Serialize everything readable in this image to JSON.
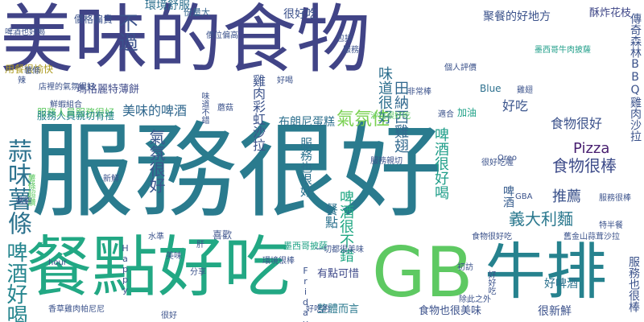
{
  "words": [
    {
      "text": "服務很好",
      "color": "#2a7b8e",
      "vertical": false
    },
    {
      "text": "美味的食物",
      "color": "#414487",
      "vertical": false
    },
    {
      "text": "餐點好吃",
      "color": "#22a884",
      "vertical": false
    },
    {
      "text": "GB",
      "color": "#5ec962",
      "vertical": false
    },
    {
      "text": "牛排",
      "color": "#26828e",
      "vertical": false
    },
    {
      "text": "蒜味薯條",
      "color": "#2c728e",
      "vertical": true
    },
    {
      "text": "啤酒好喝",
      "color": "#25858e",
      "vertical": true
    },
    {
      "text": "不過",
      "color": "#3b518b",
      "vertical": true
    },
    {
      "text": "氣氛佳",
      "color": "#7ad151",
      "vertical": false
    },
    {
      "text": "很好吃",
      "color": "#3b518b",
      "vertical": false
    },
    {
      "text": "聚餐的好地方",
      "color": "#3b528b",
      "vertical": false
    },
    {
      "text": "環境舒服",
      "color": "#2d708e",
      "vertical": false
    },
    {
      "text": "份量大",
      "color": "#33638d",
      "vertical": false
    },
    {
      "text": "酥炸花枝",
      "color": "#3f4788",
      "vertical": false
    },
    {
      "text": "墨西哥牛肉披薩",
      "color": "#1f9e89",
      "vertical": false
    },
    {
      "text": "瑪格麗特薄餅",
      "color": "#3e4a89",
      "vertical": false
    },
    {
      "text": "美味的啤酒",
      "color": "#31688e",
      "vertical": false
    },
    {
      "text": "好吃",
      "color": "#3a548c",
      "vertical": false
    },
    {
      "text": "味道很好",
      "color": "#2e6f8e",
      "vertical": true
    },
    {
      "text": "田納西雞翅",
      "color": "#31688e",
      "vertical": true
    },
    {
      "text": "雞肉彩虹沙拉",
      "color": "#3b528b",
      "vertical": true
    },
    {
      "text": "氣氛很好",
      "color": "#39568c",
      "vertical": true
    },
    {
      "text": "食物很好",
      "color": "#3b518b",
      "vertical": false
    },
    {
      "text": "食物很棒",
      "color": "#3e4c8a",
      "vertical": false
    },
    {
      "text": "Pizza",
      "color": "#481f70",
      "vertical": false
    },
    {
      "text": "推薦",
      "color": "#3b528b",
      "vertical": false
    },
    {
      "text": "義大利麵",
      "color": "#2a788e",
      "vertical": false
    },
    {
      "text": "布朗尼蛋糕",
      "color": "#2d708e",
      "vertical": false
    },
    {
      "text": "服務人員服務很好",
      "color": "#5ec962",
      "vertical": true
    },
    {
      "text": "服務人員親切有禮",
      "color": "#26828e",
      "vertical": false
    },
    {
      "text": "服務也很好",
      "color": "#2c728e",
      "vertical": true
    },
    {
      "text": "啤酒很好喝",
      "color": "#1f9e89",
      "vertical": true
    },
    {
      "text": "啤酒很不錯",
      "color": "#22a884",
      "vertical": true
    },
    {
      "text": "餐點",
      "color": "#2c728e",
      "vertical": true
    },
    {
      "text": "啤酒",
      "color": "#365c8d",
      "vertical": true
    },
    {
      "text": "好啤酒",
      "color": "#2c728e",
      "vertical": false
    },
    {
      "text": "很新鮮",
      "color": "#3b518b",
      "vertical": false
    },
    {
      "text": "食物也很美味",
      "color": "#3b518b",
      "vertical": false
    },
    {
      "text": "整體而言",
      "color": "#2a788e",
      "vertical": false
    },
    {
      "text": "服務也很棒",
      "color": "#3b528b",
      "vertical": true
    },
    {
      "text": "有點可惜",
      "color": "#3e4989",
      "vertical": false
    },
    {
      "text": "墨西哥披薩",
      "color": "#20a386",
      "vertical": false
    },
    {
      "text": "加油",
      "color": "#1fa187",
      "vertical": false
    },
    {
      "text": "喜歡",
      "color": "#3b528b",
      "vertical": false
    },
    {
      "text": "Blue",
      "color": "#2d708e",
      "vertical": false
    },
    {
      "text": "Friday",
      "color": "#3b528b",
      "vertical": true
    },
    {
      "text": "Happy",
      "color": "#3b528b",
      "vertical": true
    },
    {
      "text": "hour",
      "color": "#3b528b",
      "vertical": false
    },
    {
      "text": "Oreo",
      "color": "#3b528b",
      "vertical": false
    },
    {
      "text": "GBA",
      "color": "#3b528b",
      "vertical": false
    },
    {
      "text": "價格偏貴",
      "color": "#3b528b",
      "vertical": false
    },
    {
      "text": "啤酒也好喝",
      "color": "#3b528b",
      "vertical": false
    },
    {
      "text": "用餐很愉快",
      "color": "#ad9b20",
      "vertical": false
    },
    {
      "text": "價位偏高",
      "color": "#3b528b",
      "vertical": false
    },
    {
      "text": "店裡的氣氛很好",
      "color": "#3b528b",
      "vertical": false
    },
    {
      "text": "鮮蝦組合",
      "color": "#3b528b",
      "vertical": false
    },
    {
      "text": "美味",
      "color": "#3b528b",
      "vertical": false
    },
    {
      "text": "水準",
      "color": "#3b528b",
      "vertical": false
    },
    {
      "text": "分享",
      "color": "#3b528b",
      "vertical": false
    },
    {
      "text": "新鮮",
      "color": "#3b528b",
      "vertical": false
    },
    {
      "text": "很好",
      "color": "#3b528b",
      "vertical": false
    },
    {
      "text": "初訪",
      "color": "#3b528b",
      "vertical": false
    },
    {
      "text": "好好吃",
      "color": "#3b528b",
      "vertical": true
    },
    {
      "text": "沙拉很好吃",
      "color": "#5ec962",
      "vertical": false
    },
    {
      "text": "薯條",
      "color": "#3b528b",
      "vertical": false
    },
    {
      "text": "很好吃喔",
      "color": "#3b528b",
      "vertical": false
    },
    {
      "text": "個人評價",
      "color": "#3b528b",
      "vertical": false
    },
    {
      "text": "服務親切",
      "color": "#3b528b",
      "vertical": false
    },
    {
      "text": "服務很棒",
      "color": "#3b528b",
      "vertical": false
    },
    {
      "text": "傳奇森林BBQ雞肉沙拉",
      "color": "#3b528b",
      "vertical": true
    },
    {
      "text": "舊金山蒜茸沙拉",
      "color": "#3b528b",
      "vertical": false
    },
    {
      "text": "食物很好吃",
      "color": "#3b528b",
      "vertical": false
    },
    {
      "text": "一切都很美味",
      "color": "#3b528b",
      "vertical": false
    },
    {
      "text": "特半餐",
      "color": "#3b528b",
      "vertical": false
    },
    {
      "text": "非常棒",
      "color": "#3b528b",
      "vertical": false
    },
    {
      "text": "除此之外",
      "color": "#3b528b",
      "vertical": false
    },
    {
      "text": "香草雞肉帕尼尼",
      "color": "#3b528b",
      "vertical": false
    },
    {
      "text": "蘑菇",
      "color": "#3b528b",
      "vertical": false
    },
    {
      "text": "烤雞",
      "color": "#3b528b",
      "vertical": false
    },
    {
      "text": "適合",
      "color": "#3b528b",
      "vertical": false
    },
    {
      "text": "薯條超讚",
      "color": "#5ec962",
      "vertical": true
    },
    {
      "text": "味道不錯",
      "color": "#3b528b",
      "vertical": true
    },
    {
      "text": "環境很棒",
      "color": "#3b528b",
      "vertical": false
    },
    {
      "text": "好喝",
      "color": "#3b528b",
      "vertical": false
    },
    {
      "text": "肝",
      "color": "#3b528b",
      "vertical": false
    },
    {
      "text": "辣",
      "color": "#3b528b",
      "vertical": false
    },
    {
      "text": "雞翅",
      "color": "#3b528b",
      "vertical": false
    },
    {
      "text": "包括",
      "color": "#3b528b",
      "vertical": false
    },
    {
      "text": "服務",
      "color": "#3b528b",
      "vertical": false
    },
    {
      "text": "好吃的",
      "color": "#3b528b",
      "vertical": false
    }
  ]
}
